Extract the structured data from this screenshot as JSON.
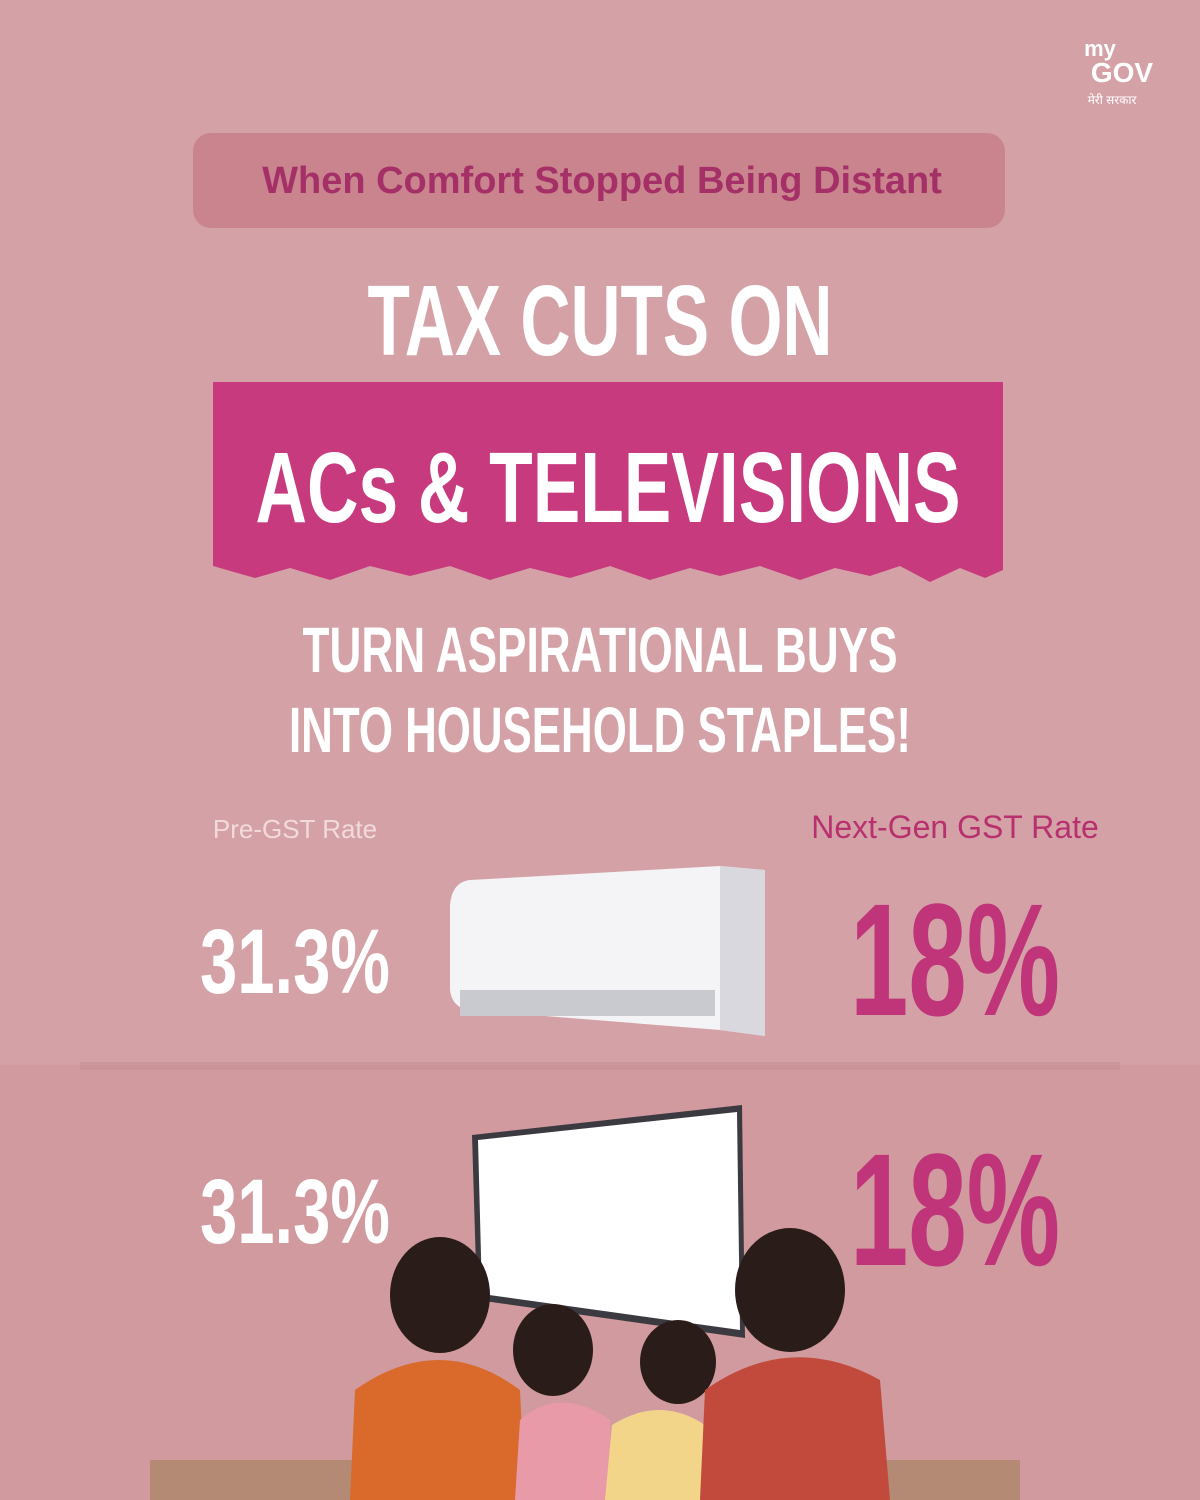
{
  "logo": {
    "top": "my",
    "main": "GOV",
    "tagline": "मेरी सरकार"
  },
  "banner": "When Comfort Stopped Being Distant",
  "headline": {
    "line1": "TAX CUTS ON",
    "highlight": "ACs & TELEVISIONS"
  },
  "subheadline": {
    "line1": "TURN ASPIRATIONAL BUYS",
    "line2": "INTO HOUSEHOLD STAPLES!"
  },
  "comparison": {
    "headers": {
      "pre": "Pre-GST Rate",
      "next": "Next-Gen GST Rate"
    },
    "rows": [
      {
        "pre": "31.3%",
        "next": "18%"
      },
      {
        "pre": "31.3%",
        "next": "18%"
      }
    ]
  }
}
